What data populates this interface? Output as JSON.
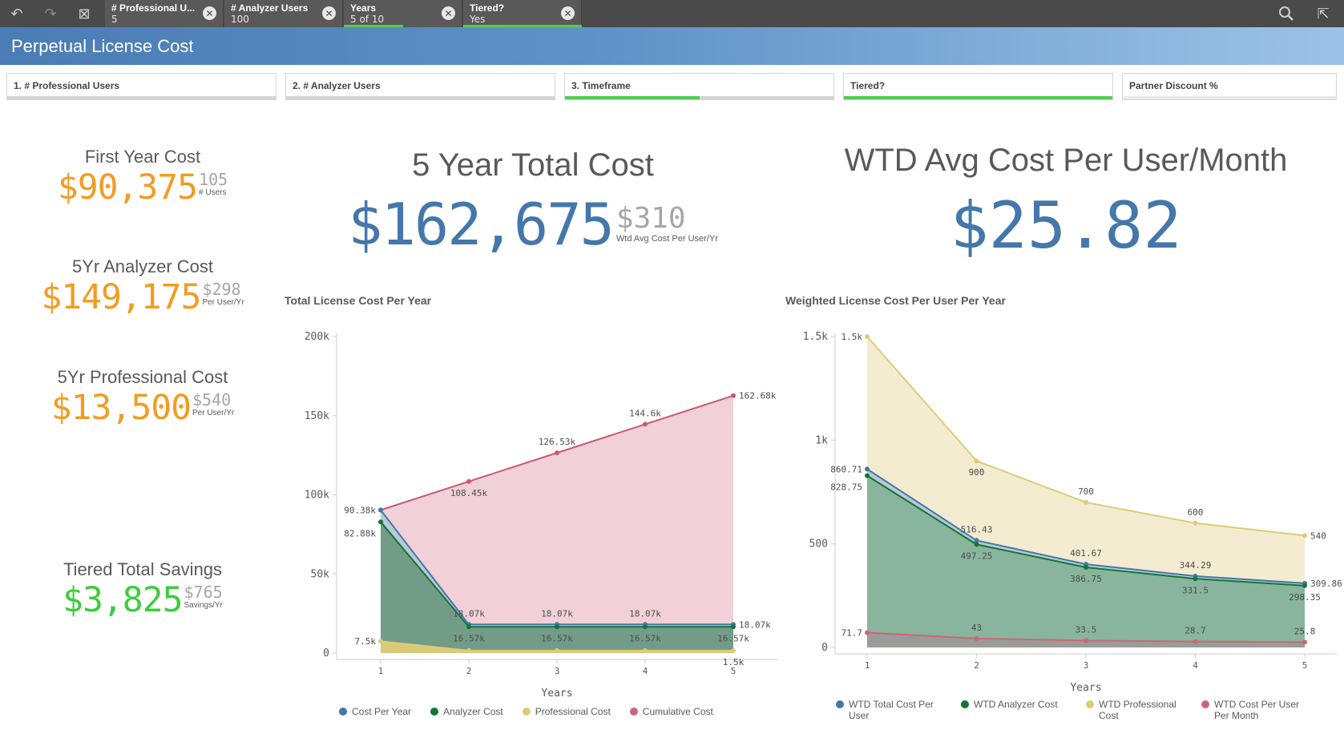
{
  "toolbar": {
    "selections": [
      {
        "title": "# Professional U...",
        "value": "5"
      },
      {
        "title": "# Analyzer Users",
        "value": "100"
      },
      {
        "title": "Years",
        "value": "5 of 10"
      },
      {
        "title": "Tiered?",
        "value": "Yes"
      }
    ],
    "clear_glyph": "✕"
  },
  "sheet": {
    "title": "Perpetual License Cost"
  },
  "filters": [
    {
      "label": "1. # Professional Users",
      "fill": 0
    },
    {
      "label": "2. # Analyzer Users",
      "fill": 0
    },
    {
      "label": "3. Timeframe",
      "fill": 0.5
    },
    {
      "label": "Tiered?",
      "fill": 1.0
    },
    {
      "label": "Partner Discount %",
      "fill": 0
    }
  ],
  "kpis": {
    "first_year": {
      "title": "First Year Cost",
      "value": "$90,375",
      "sub_value": "105",
      "sub_label": "# Users"
    },
    "analyzer": {
      "title": "5Yr Analyzer Cost",
      "value": "$149,175",
      "sub_value": "$298",
      "sub_label": "Per User/Yr"
    },
    "professional": {
      "title": "5Yr Professional Cost",
      "value": "$13,500",
      "sub_value": "$540",
      "sub_label": "Per User/Yr"
    },
    "savings": {
      "title": "Tiered Total Savings",
      "value": "$3,825",
      "sub_value": "$765",
      "sub_label": "Savings/Yr"
    },
    "total": {
      "title": "5 Year Total Cost",
      "value": "$162,675",
      "sub_value": "$310",
      "sub_label": "Wtd Avg Cost Per User/Yr"
    },
    "wtd_avg": {
      "title": "WTD Avg Cost Per User/Month",
      "value": "$25.82"
    }
  },
  "chart_data": [
    {
      "type": "area",
      "title": "Total License Cost Per Year",
      "xlabel": "Years",
      "ylabel": "",
      "x": [
        1,
        2,
        3,
        4,
        5
      ],
      "ylim": [
        0,
        200000
      ],
      "yticks": [
        0,
        50000,
        100000,
        150000,
        200000
      ],
      "ytick_labels": [
        "0",
        "50k",
        "100k",
        "150k",
        "200k"
      ],
      "series": [
        {
          "name": "Cumulative Cost",
          "color": "#c85a6e",
          "fill": "#f0cdd5",
          "values": [
            90375,
            108450,
            126525,
            144600,
            162675
          ],
          "labels": [
            "",
            "108.45k",
            "126.53k",
            "144.6k",
            "162.68k"
          ],
          "label_pos": [
            "",
            "below",
            "above",
            "above",
            "right"
          ]
        },
        {
          "name": "Cost Per Year",
          "color": "#4477aa",
          "fill": "#b7c7d8",
          "values": [
            90375,
            18075,
            18075,
            18075,
            18075
          ],
          "labels": [
            "90.38k",
            "18.07k",
            "18.07k",
            "18.07k",
            "18.07k"
          ],
          "label_pos": [
            "left",
            "above",
            "above",
            "above",
            "right"
          ]
        },
        {
          "name": "Analyzer Cost",
          "color": "#117733",
          "fill": "#6f9a84",
          "values": [
            82875,
            16575,
            16575,
            16575,
            16575
          ],
          "labels": [
            "82.88k",
            "16.57k",
            "16.57k",
            "16.57k",
            "16.57k"
          ],
          "label_pos": [
            "below-left",
            "below",
            "below",
            "below",
            "below"
          ]
        },
        {
          "name": "Professional Cost",
          "color": "#ddcc77",
          "fill": "#ddcc77",
          "values": [
            7500,
            1500,
            1500,
            1500,
            1500
          ],
          "labels": [
            "7.5k",
            "",
            "",
            "",
            "1.5k"
          ],
          "label_pos": [
            "left",
            "",
            "",
            "",
            "below"
          ]
        }
      ],
      "legend": [
        "Cost Per Year",
        "Analyzer Cost",
        "Professional Cost",
        "Cumulative Cost"
      ]
    },
    {
      "type": "area",
      "title": "Weighted License Cost Per User Per Year",
      "xlabel": "Years",
      "ylabel": "",
      "x": [
        1,
        2,
        3,
        4,
        5
      ],
      "ylim": [
        0,
        1500
      ],
      "yticks": [
        0,
        500,
        1000,
        1500
      ],
      "ytick_labels": [
        "0",
        "500",
        "1k",
        "1.5k"
      ],
      "series": [
        {
          "name": "WTD Professional Cost",
          "color": "#ddcc77",
          "fill": "#f3ebcf",
          "values": [
            1500,
            900,
            700,
            600,
            540
          ],
          "labels": [
            "1.5k",
            "900",
            "700",
            "600",
            "540"
          ],
          "label_pos": [
            "left",
            "below",
            "above",
            "above",
            "right"
          ]
        },
        {
          "name": "WTD Total Cost Per User",
          "color": "#4477aa",
          "fill": "#b7c7d8",
          "values": [
            860.71,
            516.43,
            401.67,
            344.29,
            309.86
          ],
          "labels": [
            "860.71",
            "516.43",
            "401.67",
            "344.29",
            "309.86"
          ],
          "label_pos": [
            "left",
            "above",
            "above",
            "above",
            "right"
          ]
        },
        {
          "name": "WTD Analyzer Cost",
          "color": "#117733",
          "fill": "#86b39a",
          "values": [
            828.75,
            497.25,
            386.75,
            331.5,
            298.35
          ],
          "labels": [
            "828.75",
            "497.25",
            "386.75",
            "331.5",
            "298.35"
          ],
          "label_pos": [
            "below-left",
            "below",
            "below",
            "below",
            "below"
          ]
        },
        {
          "name": "WTD Cost Per User Per Month",
          "color": "#cc6677",
          "fill": "#9c9a9a",
          "values": [
            71.7,
            43,
            33.5,
            28.7,
            25.8
          ],
          "labels": [
            "71.7",
            "43",
            "33.5",
            "28.7",
            "25.8"
          ],
          "label_pos": [
            "left",
            "above",
            "above",
            "above",
            "above"
          ]
        }
      ],
      "legend": [
        "WTD Total Cost Per User",
        "WTD Analyzer Cost",
        "WTD Professional Cost",
        "WTD Cost Per User Per Month"
      ]
    }
  ]
}
